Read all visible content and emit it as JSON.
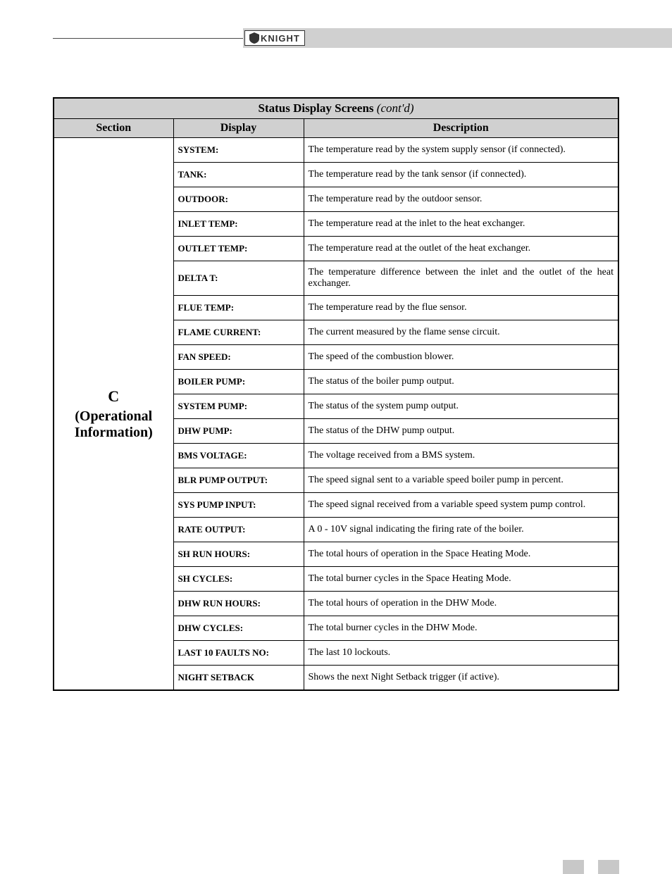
{
  "logo": {
    "text": "KNIGHT"
  },
  "table": {
    "title": "Status Display Screens",
    "title_contd": "(cont'd)",
    "columns": [
      "Section",
      "Display",
      "Description"
    ],
    "section": {
      "letter": "C",
      "line1": "(Operational",
      "line2": "Information)"
    },
    "rows": [
      {
        "display": "SYSTEM:",
        "description": "The temperature read by the system supply sensor (if connected)."
      },
      {
        "display": "TANK:",
        "description": "The temperature read by the tank sensor (if connected)."
      },
      {
        "display": "OUTDOOR:",
        "description": "The temperature read by the outdoor sensor."
      },
      {
        "display": "INLET TEMP:",
        "description": "The temperature read at the inlet to the heat exchanger."
      },
      {
        "display": "OUTLET TEMP:",
        "description": "The temperature read at the outlet of the heat exchanger."
      },
      {
        "display": "DELTA T:",
        "description": "The temperature difference between the inlet and the outlet of the heat exchanger."
      },
      {
        "display": "FLUE TEMP:",
        "description": "The temperature read by the flue sensor."
      },
      {
        "display": "FLAME CURRENT:",
        "description": "The current measured by the flame sense circuit."
      },
      {
        "display": "FAN SPEED:",
        "description": "The speed of the combustion blower."
      },
      {
        "display": "BOILER PUMP:",
        "description": "The status of the boiler pump output."
      },
      {
        "display": "SYSTEM PUMP:",
        "description": "The status of the system pump output."
      },
      {
        "display": "DHW PUMP:",
        "description": "The status of the DHW pump output."
      },
      {
        "display": "BMS VOLTAGE:",
        "description": "The voltage received from a BMS system."
      },
      {
        "display": "BLR PUMP OUTPUT:",
        "description": "The speed signal sent to a variable speed boiler pump in percent."
      },
      {
        "display": "SYS PUMP INPUT:",
        "description": "The speed signal received from a variable speed system pump control."
      },
      {
        "display": "RATE OUTPUT:",
        "description": "A 0 - 10V signal indicating the firing rate of the boiler."
      },
      {
        "display": "SH RUN HOURS:",
        "description": "The total hours of operation in the Space Heating Mode."
      },
      {
        "display": "SH CYCLES:",
        "description": "The total burner cycles in the Space Heating Mode."
      },
      {
        "display": "DHW RUN HOURS:",
        "description": "The total hours of operation in the DHW Mode."
      },
      {
        "display": "DHW CYCLES:",
        "description": "The total burner cycles in the DHW Mode."
      },
      {
        "display": "LAST 10 FAULTS NO:",
        "description": "The last 10 lockouts."
      },
      {
        "display": "NIGHT SETBACK",
        "description": "Shows the next Night Setback trigger (if active)."
      }
    ]
  },
  "styling": {
    "header_bg": "#d0d0d0",
    "border_color": "#000000",
    "text_color": "#000000",
    "body_bg": "#ffffff",
    "footer_box_bg": "#c8c8c8",
    "title_fontsize": 17,
    "header_fontsize": 16,
    "section_fontsize": 20,
    "display_fontsize": 13,
    "desc_fontsize": 14
  }
}
